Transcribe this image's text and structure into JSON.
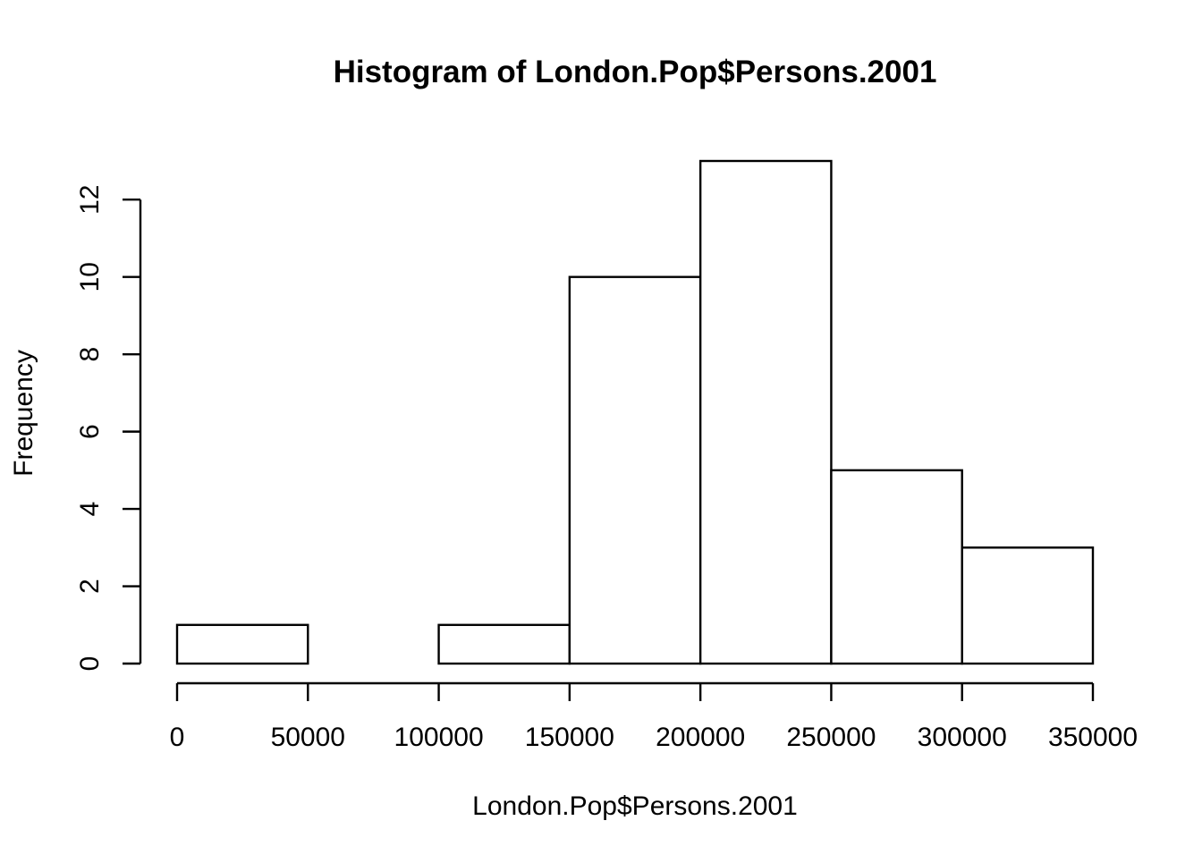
{
  "chart_data": {
    "type": "bar",
    "title": "Histogram of London.Pop$Persons.2001",
    "xlabel": "London.Pop$Persons.2001",
    "ylabel": "Frequency",
    "bins": [
      {
        "start": 0,
        "end": 50000,
        "count": 1
      },
      {
        "start": 50000,
        "end": 100000,
        "count": 0
      },
      {
        "start": 100000,
        "end": 150000,
        "count": 1
      },
      {
        "start": 150000,
        "end": 200000,
        "count": 10
      },
      {
        "start": 200000,
        "end": 250000,
        "count": 13
      },
      {
        "start": 250000,
        "end": 300000,
        "count": 5
      },
      {
        "start": 300000,
        "end": 350000,
        "count": 3
      }
    ],
    "xlim": [
      0,
      350000
    ],
    "ylim": [
      0,
      13
    ],
    "x_ticks": [
      "0",
      "50000",
      "100000",
      "150000",
      "200000",
      "250000",
      "300000",
      "350000"
    ],
    "x_tick_values": [
      0,
      50000,
      100000,
      150000,
      200000,
      250000,
      300000,
      350000
    ],
    "y_ticks": [
      "0",
      "2",
      "4",
      "6",
      "8",
      "10",
      "12"
    ],
    "y_tick_values": [
      0,
      2,
      4,
      6,
      8,
      10,
      12
    ],
    "grid": false,
    "legend": "none",
    "colors": {
      "fill": "#ffffff",
      "stroke": "#000000"
    }
  }
}
